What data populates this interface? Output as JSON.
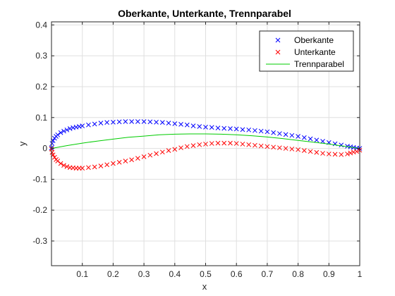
{
  "chart_data": {
    "type": "scatter",
    "title": "Oberkante, Unterkante, Trennparabel",
    "xlabel": "x",
    "ylabel": "y",
    "xlim": [
      0,
      1
    ],
    "ylim": [
      -0.38,
      0.41
    ],
    "grid": true,
    "legend_position": "top-right",
    "xticks": [
      "0.1",
      "0.2",
      "0.3",
      "0.4",
      "0.5",
      "0.6",
      "0.7",
      "0.8",
      "0.9",
      "1"
    ],
    "xtick_values": [
      0.1,
      0.2,
      0.3,
      0.4,
      0.5,
      0.6,
      0.7,
      0.8,
      0.9,
      1.0
    ],
    "yticks": [
      "0.4",
      "0.3",
      "0.2",
      "0.1",
      "0",
      "-0.1",
      "-0.2",
      "-0.3"
    ],
    "ytick_values": [
      0.4,
      0.3,
      0.2,
      0.1,
      0,
      -0.1,
      -0.2,
      -0.3
    ],
    "series": [
      {
        "name": "Oberkante",
        "marker": "x",
        "color": "#0000ff",
        "x": [
          0.0,
          0.002,
          0.005,
          0.01,
          0.015,
          0.02,
          0.03,
          0.04,
          0.05,
          0.06,
          0.07,
          0.08,
          0.09,
          0.1,
          0.12,
          0.14,
          0.16,
          0.18,
          0.2,
          0.22,
          0.24,
          0.26,
          0.28,
          0.3,
          0.32,
          0.34,
          0.36,
          0.38,
          0.4,
          0.42,
          0.44,
          0.46,
          0.48,
          0.5,
          0.52,
          0.54,
          0.56,
          0.58,
          0.6,
          0.62,
          0.64,
          0.66,
          0.68,
          0.7,
          0.72,
          0.74,
          0.76,
          0.78,
          0.8,
          0.82,
          0.84,
          0.86,
          0.88,
          0.9,
          0.92,
          0.94,
          0.96,
          0.97,
          0.98,
          0.99,
          1.0
        ],
        "y": [
          0.002,
          0.016,
          0.025,
          0.033,
          0.039,
          0.044,
          0.051,
          0.056,
          0.06,
          0.064,
          0.067,
          0.069,
          0.071,
          0.073,
          0.076,
          0.079,
          0.082,
          0.084,
          0.085,
          0.086,
          0.087,
          0.087,
          0.087,
          0.087,
          0.086,
          0.085,
          0.084,
          0.082,
          0.08,
          0.078,
          0.076,
          0.073,
          0.071,
          0.069,
          0.068,
          0.066,
          0.065,
          0.064,
          0.063,
          0.061,
          0.06,
          0.058,
          0.056,
          0.054,
          0.051,
          0.048,
          0.045,
          0.042,
          0.039,
          0.035,
          0.031,
          0.027,
          0.023,
          0.019,
          0.015,
          0.011,
          0.007,
          0.005,
          0.003,
          0.001,
          0.0
        ]
      },
      {
        "name": "Unterkante",
        "marker": "x",
        "color": "#ff0000",
        "x": [
          0.0,
          0.002,
          0.005,
          0.01,
          0.015,
          0.02,
          0.03,
          0.04,
          0.05,
          0.06,
          0.07,
          0.08,
          0.09,
          0.1,
          0.12,
          0.14,
          0.16,
          0.18,
          0.2,
          0.22,
          0.24,
          0.26,
          0.28,
          0.3,
          0.32,
          0.34,
          0.36,
          0.38,
          0.4,
          0.42,
          0.44,
          0.46,
          0.48,
          0.5,
          0.52,
          0.54,
          0.56,
          0.58,
          0.6,
          0.62,
          0.64,
          0.66,
          0.68,
          0.7,
          0.72,
          0.74,
          0.76,
          0.78,
          0.8,
          0.82,
          0.84,
          0.86,
          0.88,
          0.9,
          0.92,
          0.94,
          0.96,
          0.97,
          0.98,
          0.99,
          1.0
        ],
        "y": [
          -0.002,
          -0.013,
          -0.021,
          -0.029,
          -0.036,
          -0.041,
          -0.049,
          -0.055,
          -0.059,
          -0.062,
          -0.063,
          -0.064,
          -0.064,
          -0.064,
          -0.062,
          -0.06,
          -0.057,
          -0.053,
          -0.049,
          -0.045,
          -0.041,
          -0.037,
          -0.032,
          -0.027,
          -0.022,
          -0.017,
          -0.012,
          -0.007,
          -0.003,
          0.002,
          0.006,
          0.009,
          0.012,
          0.014,
          0.016,
          0.017,
          0.017,
          0.017,
          0.016,
          0.014,
          0.012,
          0.01,
          0.008,
          0.006,
          0.004,
          0.002,
          0.0,
          -0.002,
          -0.004,
          -0.007,
          -0.01,
          -0.013,
          -0.016,
          -0.018,
          -0.019,
          -0.02,
          -0.018,
          -0.015,
          -0.012,
          -0.01,
          -0.006
        ]
      },
      {
        "name": "Trennparabel",
        "marker": "line",
        "color": "#00cc00",
        "x": [
          0.0,
          0.05,
          0.1,
          0.15,
          0.2,
          0.25,
          0.3,
          0.35,
          0.4,
          0.45,
          0.5,
          0.55,
          0.6,
          0.65,
          0.7,
          0.75,
          0.8,
          0.85,
          0.9,
          0.95,
          1.0
        ],
        "y": [
          0.0,
          0.009,
          0.017,
          0.024,
          0.03,
          0.036,
          0.04,
          0.044,
          0.046,
          0.047,
          0.047,
          0.046,
          0.044,
          0.041,
          0.037,
          0.032,
          0.026,
          0.02,
          0.014,
          0.007,
          0.0
        ]
      }
    ]
  }
}
